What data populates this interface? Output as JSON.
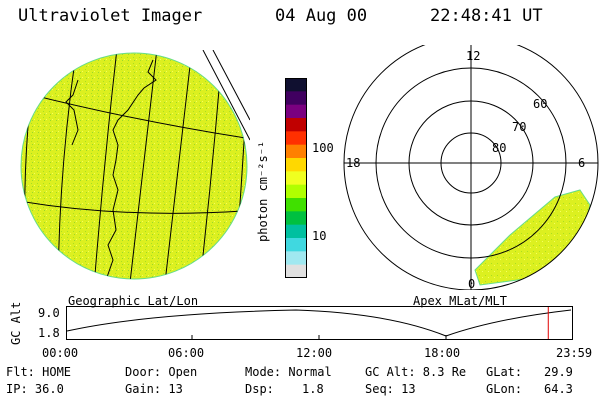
{
  "header": {
    "title": "Ultraviolet Imager",
    "date": "04 Aug 00",
    "time": "22:48:41 UT"
  },
  "colorbar": {
    "unit_label": "photon cm⁻²s⁻¹",
    "ticks": [
      "100",
      "10"
    ],
    "colors": [
      "#101030",
      "#400060",
      "#7a0080",
      "#c00000",
      "#ff3000",
      "#ff8000",
      "#ffd800",
      "#f0ff20",
      "#b0ff00",
      "#40e000",
      "#00c040",
      "#00c0a0",
      "#40d8e0",
      "#a0e8f0",
      "#e0e0e0"
    ]
  },
  "globe": {
    "label": "Geographic Lat/Lon",
    "fill_color": "#dcf020"
  },
  "polar": {
    "label": "Apex MLat/MLT",
    "mlt_labels": {
      "top": "12",
      "left": "18",
      "right": "6",
      "bottom": "0"
    },
    "lat_labels": [
      "60",
      "70",
      "80"
    ],
    "fill_color": "#dcf020"
  },
  "timeline": {
    "y_label": "GC Alt",
    "y_ticks": [
      "9.0",
      "1.8"
    ],
    "x_ticks": [
      "00:00",
      "06:00",
      "12:00",
      "18:00",
      "23:59"
    ],
    "current_time_fraction": 0.953
  },
  "status": {
    "flt": "Flt: HOME",
    "door": "Door: Open",
    "mode": "Mode: Normal",
    "gc_alt": "GC Alt: 8.3 Re",
    "glat_label": "GLat:",
    "glat_value": "29.9",
    "ip": "IP: 36.0",
    "gain": "Gain: 13",
    "dsp_label": "Dsp:",
    "dsp_value": "1.8",
    "seq": "Seq: 13",
    "glon_label": "GLon:",
    "glon_value": "64.3"
  }
}
